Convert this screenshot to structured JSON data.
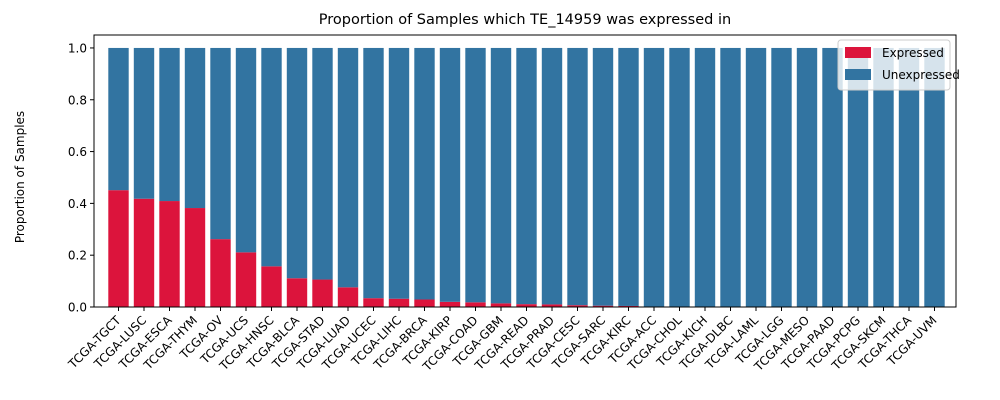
{
  "chart_data": {
    "type": "bar",
    "stacked": true,
    "title": "Proportion of Samples which TE_14959 was expressed in",
    "xlabel": "",
    "ylabel": "Proportion of Samples",
    "ylim": [
      0,
      1.05
    ],
    "yticks": [
      0.0,
      0.2,
      0.4,
      0.6,
      0.8,
      1.0
    ],
    "ytick_labels": [
      "0.0",
      "0.2",
      "0.4",
      "0.6",
      "0.8",
      "1.0"
    ],
    "grid": false,
    "legend_position": "top-right",
    "categories": [
      "TCGA-TGCT",
      "TCGA-LUSC",
      "TCGA-ESCA",
      "TCGA-THYM",
      "TCGA-OV",
      "TCGA-UCS",
      "TCGA-HNSC",
      "TCGA-BLCA",
      "TCGA-STAD",
      "TCGA-LUAD",
      "TCGA-UCEC",
      "TCGA-LIHC",
      "TCGA-BRCA",
      "TCGA-KIRP",
      "TCGA-COAD",
      "TCGA-GBM",
      "TCGA-READ",
      "TCGA-PRAD",
      "TCGA-CESC",
      "TCGA-SARC",
      "TCGA-KIRC",
      "TCGA-ACC",
      "TCGA-CHOL",
      "TCGA-KICH",
      "TCGA-DLBC",
      "TCGA-LAML",
      "TCGA-LGG",
      "TCGA-MESO",
      "TCGA-PAAD",
      "TCGA-PCPG",
      "TCGA-SKCM",
      "TCGA-THCA",
      "TCGA-UVM"
    ],
    "series": [
      {
        "name": "Expressed",
        "color": "#dc143c",
        "values": [
          0.451,
          0.418,
          0.409,
          0.382,
          0.262,
          0.211,
          0.157,
          0.111,
          0.106,
          0.076,
          0.034,
          0.032,
          0.029,
          0.02,
          0.018,
          0.014,
          0.011,
          0.01,
          0.007,
          0.005,
          0.004,
          0,
          0,
          0,
          0,
          0,
          0,
          0,
          0,
          0,
          0,
          0,
          0
        ]
      },
      {
        "name": "Unexpressed",
        "color": "#3274a1",
        "values": [
          0.549,
          0.582,
          0.591,
          0.618,
          0.738,
          0.789,
          0.843,
          0.889,
          0.894,
          0.924,
          0.966,
          0.968,
          0.971,
          0.98,
          0.982,
          0.986,
          0.989,
          0.99,
          0.993,
          0.995,
          0.996,
          1,
          1,
          1,
          1,
          1,
          1,
          1,
          1,
          1,
          1,
          1,
          1
        ]
      }
    ]
  }
}
